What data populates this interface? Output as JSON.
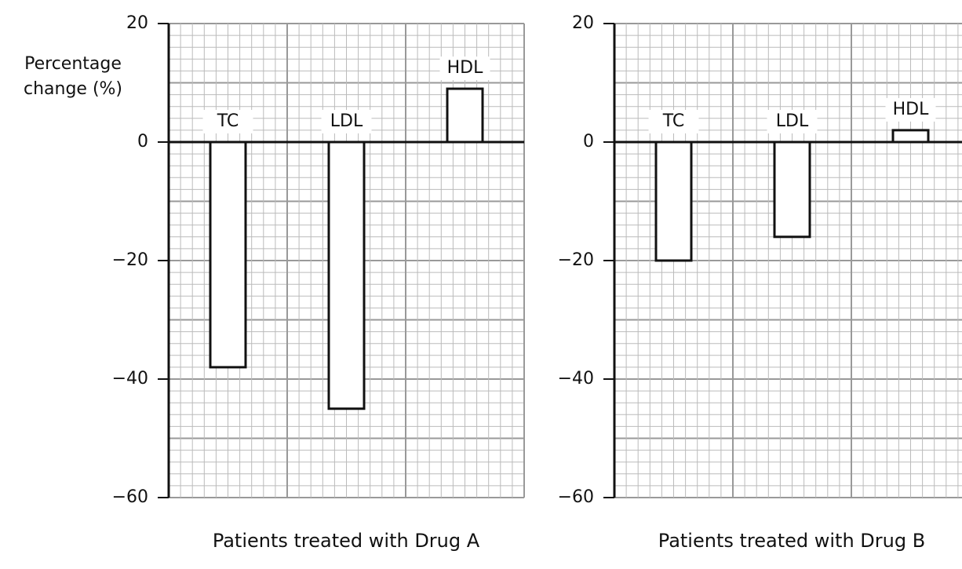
{
  "chart_data": [
    {
      "type": "bar",
      "ylabel": "Percentage change (%)",
      "xlabel": "Patients treated with Drug A",
      "categories": [
        "TC",
        "LDL",
        "HDL"
      ],
      "values": [
        -38,
        -45,
        9
      ],
      "color": "#ffffff",
      "ylim": [
        -60,
        20
      ],
      "yticks": [
        {
          "value": 20,
          "label": "20"
        },
        {
          "value": 0,
          "label": "0"
        },
        {
          "value": -20,
          "label": "−20"
        },
        {
          "value": -40,
          "label": "−40"
        },
        {
          "value": -60,
          "label": "−60"
        }
      ],
      "grid": true
    },
    {
      "type": "bar",
      "xlabel": "Patients treated with Drug B",
      "categories": [
        "TC",
        "LDL",
        "HDL"
      ],
      "values": [
        -20,
        -16,
        2
      ],
      "color": "#ffffff",
      "ylim": [
        -60,
        20
      ],
      "yticks": [
        {
          "value": 20,
          "label": "20"
        },
        {
          "value": 0,
          "label": "0"
        },
        {
          "value": -20,
          "label": "−20"
        },
        {
          "value": -40,
          "label": "−40"
        },
        {
          "value": -60,
          "label": "−60"
        }
      ],
      "grid": true
    }
  ]
}
